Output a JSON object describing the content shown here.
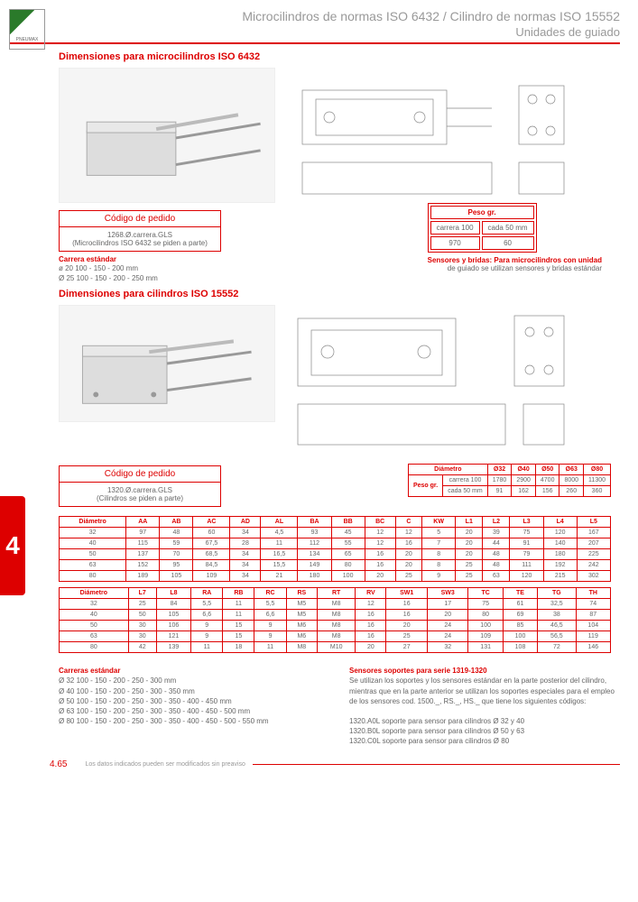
{
  "logo_text": "PNEUMAX",
  "header_line1": "Microcilindros de normas ISO 6432 / Cilindro de normas ISO 15552",
  "header_line2": "Unidades de guiado",
  "section1_title": "Dimensiones para microcilindros ISO 6432",
  "codebox1_header": "Código de pedido",
  "codebox1_body1": "1268.Ø.carrera.GLS",
  "codebox1_body2": "(Microcilindros ISO 6432 se piden a parte)",
  "carrera1_title": "Carrera estándar",
  "carrera1_l1": "ø 20 100 - 150 - 200 mm",
  "carrera1_l2": "Ø 25 100 - 150 - 200 - 250 mm",
  "peso1_header": "Peso gr.",
  "peso1_cols": [
    "carrera 100",
    "cada 50 mm"
  ],
  "peso1_row": [
    "970",
    "60"
  ],
  "sensor1_l1": "Sensores y bridas: Para microcilindros con unidad",
  "sensor1_l2": "de guiado se utilizan sensores y bridas estándar",
  "section2_title": "Dimensiones para cilindros ISO 15552",
  "codebox2_header": "Código de pedido",
  "codebox2_body1": "1320.Ø.carrera.GLS",
  "codebox2_body2": "(Cilindros se piden a parte)",
  "peso2": {
    "header": "Diámetro",
    "cols": [
      "Ø32",
      "Ø40",
      "Ø50",
      "Ø63",
      "Ø80"
    ],
    "rows": [
      {
        "lbl": "Peso",
        "sub": "carrera 100",
        "vals": [
          "1780",
          "2900",
          "4700",
          "8000",
          "11300"
        ]
      },
      {
        "lbl": "gr.",
        "sub": "cada 50 mm",
        "vals": [
          "91",
          "162",
          "156",
          "260",
          "360"
        ]
      }
    ]
  },
  "sidetab": "4",
  "table1": {
    "headers": [
      "Diámetro",
      "AA",
      "AB",
      "AC",
      "AD",
      "AL",
      "BA",
      "BB",
      "BC",
      "C",
      "KW",
      "L1",
      "L2",
      "L3",
      "L4",
      "L5"
    ],
    "rows": [
      [
        "32",
        "97",
        "48",
        "60",
        "34",
        "4,5",
        "93",
        "45",
        "12",
        "12",
        "5",
        "20",
        "39",
        "75",
        "120",
        "167"
      ],
      [
        "40",
        "115",
        "59",
        "67,5",
        "28",
        "11",
        "112",
        "55",
        "12",
        "16",
        "7",
        "20",
        "44",
        "91",
        "140",
        "207"
      ],
      [
        "50",
        "137",
        "70",
        "68,5",
        "34",
        "16,5",
        "134",
        "65",
        "16",
        "20",
        "8",
        "20",
        "48",
        "79",
        "180",
        "225"
      ],
      [
        "63",
        "152",
        "95",
        "84,5",
        "34",
        "15,5",
        "149",
        "80",
        "16",
        "20",
        "8",
        "25",
        "48",
        "111",
        "192",
        "242"
      ],
      [
        "80",
        "189",
        "105",
        "109",
        "34",
        "21",
        "180",
        "100",
        "20",
        "25",
        "9",
        "25",
        "63",
        "120",
        "215",
        "302"
      ]
    ]
  },
  "table2": {
    "headers": [
      "Diámetro",
      "L7",
      "L8",
      "RA",
      "RB",
      "RC",
      "RS",
      "RT",
      "RV",
      "SW1",
      "SW3",
      "TC",
      "TE",
      "TG",
      "TH"
    ],
    "rows": [
      [
        "32",
        "25",
        "84",
        "5,5",
        "11",
        "5,5",
        "M5",
        "M8",
        "12",
        "16",
        "17",
        "75",
        "61",
        "32,5",
        "74"
      ],
      [
        "40",
        "50",
        "105",
        "6,6",
        "11",
        "6,6",
        "M5",
        "M8",
        "16",
        "16",
        "20",
        "80",
        "69",
        "38",
        "87"
      ],
      [
        "50",
        "30",
        "106",
        "9",
        "15",
        "9",
        "M6",
        "M8",
        "16",
        "20",
        "24",
        "100",
        "85",
        "46,5",
        "104"
      ],
      [
        "63",
        "30",
        "121",
        "9",
        "15",
        "9",
        "M6",
        "M8",
        "16",
        "25",
        "24",
        "109",
        "100",
        "56,5",
        "119"
      ],
      [
        "80",
        "42",
        "139",
        "11",
        "18",
        "11",
        "M8",
        "M10",
        "20",
        "27",
        "32",
        "131",
        "108",
        "72",
        "146"
      ]
    ]
  },
  "sensor2_title": "Sensores soportes para serie 1319-1320",
  "sensor2_p1": "Se utilizan los soportes y los sensores estándar en la parte posterior del cilindro, mientras que en la parte anterior se utilizan los soportes especiales para el empleo de los sensores cod. 1500._, RS._, HS._ que tiene los siguientes códigos:",
  "sensor2_p2": "1320.A0L soporte para sensor para cilindros Ø 32 y 40",
  "sensor2_p3": "1320.B0L soporte para sensor para cilindros Ø 50 y 63",
  "sensor2_p4": "1320.C0L soporte para sensor para cilindros   Ø 80",
  "carrera2_title": "Carreras estándar",
  "carrera2": [
    "Ø 32   100 - 150 - 200 - 250 - 300 mm",
    "Ø 40   100 - 150 - 200 - 250 - 300 - 350 mm",
    "Ø 50   100 - 150 - 200 - 250 - 300 - 350 - 400 - 450 mm",
    "Ø 63   100 - 150 - 200 - 250 - 300 - 350 - 400 - 450 - 500 mm",
    "Ø 80   100 - 150 - 200 - 250 - 300 - 350 - 400 - 450 - 500 - 550 mm"
  ],
  "page_num": "4.65",
  "foot_note": "Los datos indicados pueden ser modificados sin preaviso",
  "colors": {
    "red": "#d00",
    "grey": "#999",
    "text": "#666"
  }
}
